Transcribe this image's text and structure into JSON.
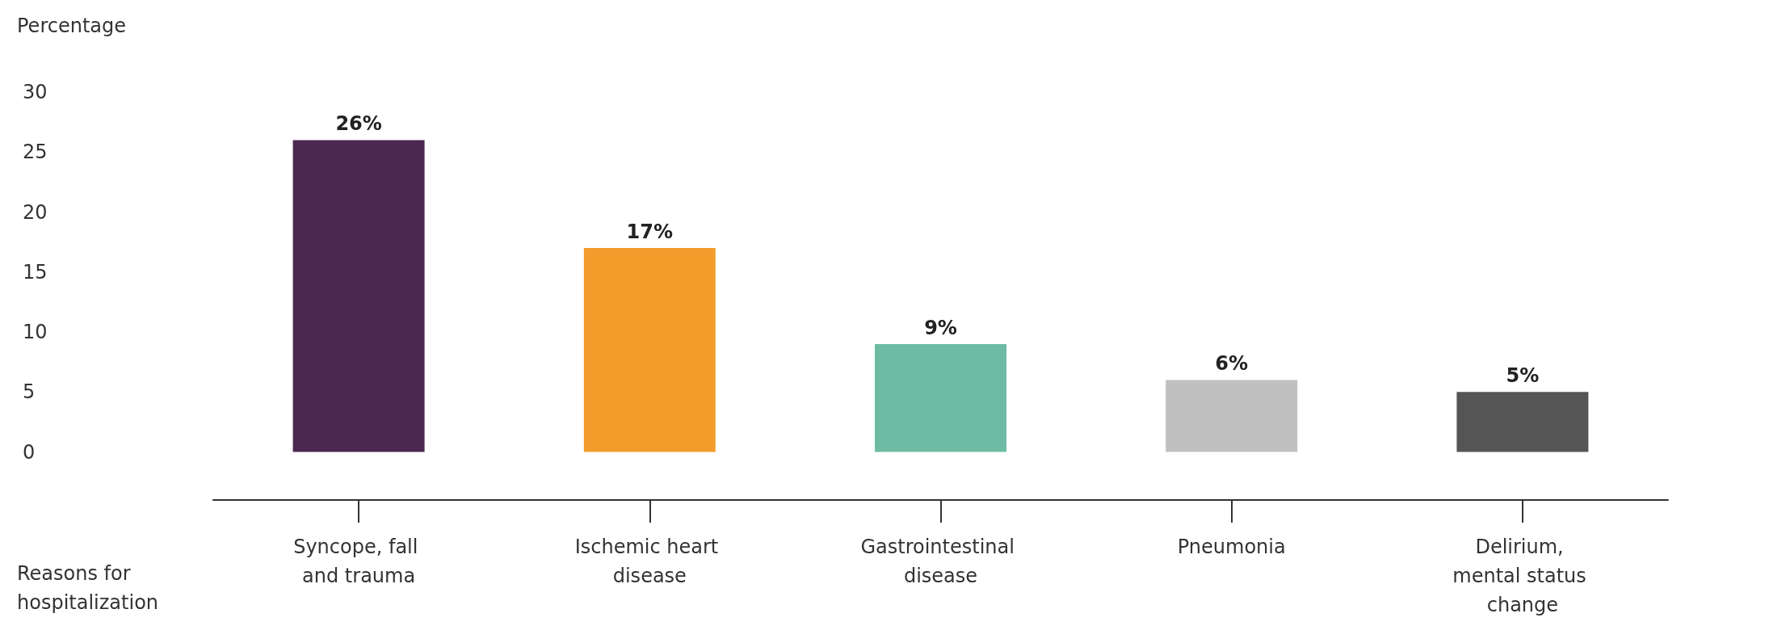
{
  "chart_data": {
    "type": "bar",
    "ylabel": "Percentage",
    "xlabel": "Reasons for hospitalization",
    "categories": [
      "Syncope, fall and trauma",
      "Ischemic heart disease",
      "Gastrointestinal disease",
      "Pneumonia",
      "Delirium, mental status change"
    ],
    "values": [
      26,
      17,
      9,
      6,
      5
    ],
    "colors": [
      "#4b2850",
      "#f39c2c",
      "#6dbba3",
      "#c0c0c0",
      "#555555"
    ],
    "value_labels": [
      "26%",
      "17%",
      "9%",
      "6%",
      "5%"
    ],
    "ylim": [
      -4,
      30
    ],
    "yticks": [
      0,
      5,
      10,
      15,
      20,
      25,
      30
    ],
    "grid": false
  }
}
